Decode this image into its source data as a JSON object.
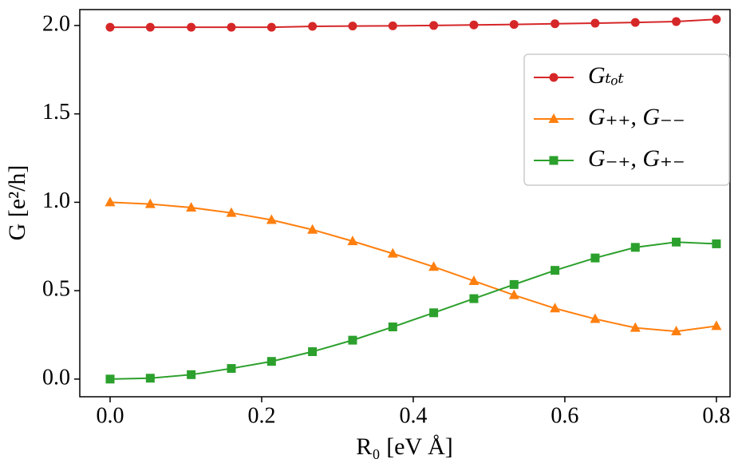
{
  "chart_data": {
    "type": "line",
    "xlabel": "R₀ [eV Å]",
    "ylabel": "G [e²/h]",
    "x": [
      0.0,
      0.053,
      0.107,
      0.16,
      0.213,
      0.267,
      0.32,
      0.373,
      0.427,
      0.48,
      0.533,
      0.587,
      0.64,
      0.693,
      0.747,
      0.8
    ],
    "series": [
      {
        "name": "Gₜₒₜ",
        "color": "#d62728",
        "marker": "circle",
        "values": [
          1.99,
          1.99,
          1.99,
          1.99,
          1.99,
          1.995,
          1.997,
          1.998,
          2.0,
          2.003,
          2.006,
          2.01,
          2.013,
          2.017,
          2.022,
          2.035
        ]
      },
      {
        "name": "G₊₊,  G₋₋",
        "color": "#ff7f0e",
        "marker": "triangle",
        "values": [
          1.0,
          0.99,
          0.97,
          0.94,
          0.9,
          0.845,
          0.78,
          0.71,
          0.635,
          0.555,
          0.475,
          0.4,
          0.34,
          0.29,
          0.27,
          0.3
        ]
      },
      {
        "name": "G₋₊,  G₊₋",
        "color": "#2ca02c",
        "marker": "square",
        "values": [
          0.0,
          0.005,
          0.025,
          0.06,
          0.1,
          0.155,
          0.22,
          0.295,
          0.375,
          0.455,
          0.535,
          0.615,
          0.685,
          0.745,
          0.775,
          0.765
        ]
      }
    ],
    "xlim": [
      -0.04,
      0.818
    ],
    "ylim": [
      -0.1,
      2.09
    ],
    "xticks": [
      {
        "value": 0,
        "label": "0.0"
      },
      0.2,
      0.4,
      0.6,
      0.8
    ],
    "yticks": [
      {
        "value": 0,
        "label": "0.0"
      },
      0.5,
      {
        "value": 1,
        "label": "1.0"
      },
      1.5,
      {
        "value": 2,
        "label": "2.0"
      }
    ],
    "legend": "upper right",
    "grid": false
  }
}
